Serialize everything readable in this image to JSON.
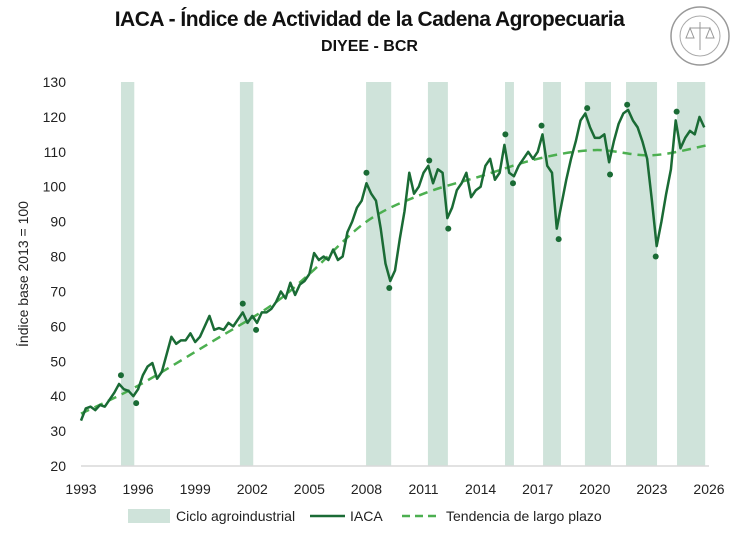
{
  "chart_data": {
    "type": "line",
    "title": "IACA - Índice de Actividad de la Cadena Agropecuaria",
    "subtitle": "DIYEE - BCR",
    "ylabel": "Índice base 2013 = 100",
    "xlabel": "",
    "xlim": [
      1993,
      2026
    ],
    "ylim": [
      20,
      130
    ],
    "x_ticks": [
      "1993",
      "1996",
      "1999",
      "2002",
      "2005",
      "2008",
      "2011",
      "2014",
      "2017",
      "2020",
      "2023",
      "2026"
    ],
    "y_ticks": [
      "20",
      "30",
      "40",
      "50",
      "60",
      "70",
      "80",
      "90",
      "100",
      "110",
      "120",
      "130"
    ],
    "grid": false,
    "legend_position": "bottom",
    "legend": [
      "Ciclo agroindustrial",
      "IACA",
      "Tendencia de largo plazo"
    ],
    "colors": {
      "iaca": "#1a6b35",
      "trend": "#4caf50",
      "cycle": "#cfe3da",
      "axis": "#d9d9d9"
    },
    "cycles": [
      [
        1995.1,
        1995.8
      ],
      [
        2001.35,
        2002.05
      ],
      [
        2007.98,
        2009.3
      ],
      [
        2011.23,
        2012.28
      ],
      [
        2015.28,
        2015.75
      ],
      [
        2017.28,
        2018.22
      ],
      [
        2019.48,
        2020.85
      ],
      [
        2021.64,
        2023.27
      ],
      [
        2024.32,
        2025.8
      ]
    ],
    "iaca": {
      "x_start": 1993,
      "x_step": 0.25,
      "values": [
        33,
        36.5,
        37,
        36,
        37.5,
        37,
        39,
        41,
        43.5,
        42,
        41.5,
        40,
        42,
        46,
        48.5,
        49.5,
        45,
        47,
        52,
        57,
        55,
        56,
        56,
        58,
        55.5,
        57,
        60,
        63,
        59,
        59.5,
        59,
        61,
        60,
        62,
        64,
        61,
        63,
        61,
        64,
        64,
        65,
        67,
        70,
        68,
        72.5,
        69,
        72,
        73,
        75,
        81,
        79,
        80,
        79,
        82,
        79,
        80,
        87,
        90,
        94,
        96,
        101,
        98,
        96,
        88,
        78,
        73,
        76,
        85,
        93,
        104,
        98,
        100,
        104,
        106,
        101,
        105,
        104,
        91,
        94,
        99,
        101,
        104,
        97,
        99,
        100,
        106,
        108,
        102,
        104,
        112,
        104,
        103,
        106,
        108,
        110,
        108,
        110,
        115,
        106,
        104,
        88,
        95,
        102,
        108,
        113,
        119,
        121,
        117,
        114,
        114,
        115,
        107,
        113,
        118,
        121,
        122,
        119,
        117,
        113,
        108,
        96,
        83,
        90,
        98,
        105,
        119,
        111,
        114,
        116,
        115,
        120,
        117
      ]
    },
    "trend": {
      "x": [
        1993,
        1996,
        2000,
        2003,
        2005,
        2008,
        2011,
        2014,
        2017,
        2020,
        2023,
        2026
      ],
      "y": [
        35,
        43,
        56,
        66,
        75,
        90,
        98,
        103,
        108,
        110.5,
        109,
        112
      ]
    },
    "turning_points": [
      [
        1995.1,
        46
      ],
      [
        1995.9,
        38
      ],
      [
        2001.5,
        66.5
      ],
      [
        2002.2,
        59
      ],
      [
        2008,
        104
      ],
      [
        2009.2,
        71
      ],
      [
        2011.3,
        107.5
      ],
      [
        2012.3,
        88
      ],
      [
        2015.3,
        115
      ],
      [
        2015.7,
        101
      ],
      [
        2017.2,
        117.5
      ],
      [
        2018.1,
        85
      ],
      [
        2019.6,
        122.5
      ],
      [
        2020.8,
        103.5
      ],
      [
        2021.7,
        123.5
      ],
      [
        2023.2,
        80
      ],
      [
        2024.3,
        121.5
      ]
    ]
  },
  "logo": {
    "text": "BOLSA DE COMERCIO DE ROSARIO"
  }
}
